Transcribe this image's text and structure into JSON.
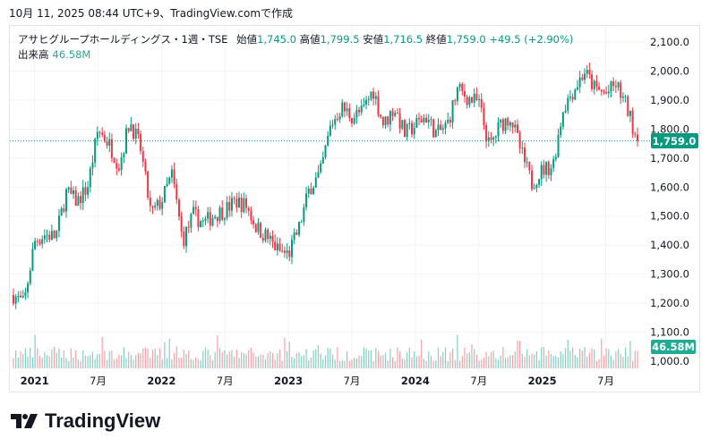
{
  "caption": "10月 11, 2025 08:44 UTC+9、TradingView.comで作成",
  "legend": {
    "symbol": "アサヒグループホールディングス・1週・TSE",
    "open_label": "始値",
    "open": "1,745.0",
    "high_label": "高値",
    "high": "1,799.5",
    "low_label": "安値",
    "low": "1,716.5",
    "close_label": "終値",
    "close": "1,759.0",
    "change": "+49.5 (+2.90%)"
  },
  "volume": {
    "label": "出来高",
    "value": "46.58M"
  },
  "price_badge": "1,759.0",
  "volume_badge": "46.58M",
  "logo_text": "TradingView",
  "colors": {
    "up": "#089981",
    "down": "#f23645",
    "vol_up": "#84cfc4",
    "vol_down": "#f5a3a8"
  },
  "chart_data": {
    "type": "candlestick",
    "interval": "1W",
    "ylim": [
      1000,
      2100
    ],
    "y_ticks": [
      "2,100.0",
      "2,000.0",
      "1,900.0",
      "1,800.0",
      "1,700.0",
      "1,600.0",
      "1,500.0",
      "1,400.0",
      "1,300.0",
      "1,200.0",
      "1,100.0",
      "1,000.0"
    ],
    "y_tick_values": [
      2100,
      2000,
      1900,
      1800,
      1700,
      1600,
      1500,
      1400,
      1300,
      1200,
      1100,
      1000
    ],
    "x_ticks": [
      "2021",
      "7月",
      "2022",
      "7月",
      "2023",
      "7月",
      "2024",
      "7月",
      "2025",
      "7月"
    ],
    "x_tick_month_index": [
      2,
      8,
      14,
      20,
      26,
      32,
      38,
      44,
      50,
      56
    ],
    "start_month": "2020-11",
    "monthly_close": [
      1228,
      1197,
      1413,
      1437,
      1428,
      1582,
      1550,
      1598,
      1798,
      1752,
      1675,
      1829,
      1736,
      1505,
      1551,
      1644,
      1413,
      1505,
      1474,
      1505,
      1521,
      1551,
      1536,
      1459,
      1428,
      1382,
      1367,
      1459,
      1598,
      1644,
      1813,
      1875,
      1844,
      1860,
      1937,
      1813,
      1875,
      1782,
      1813,
      1844,
      1782,
      1813,
      1937,
      1906,
      1890,
      1736,
      1813,
      1844,
      1720,
      1613,
      1659,
      1675,
      1875,
      1937,
      1998,
      1937,
      1921,
      1952,
      1875,
      1759
    ],
    "last_price": 1759.0
  }
}
